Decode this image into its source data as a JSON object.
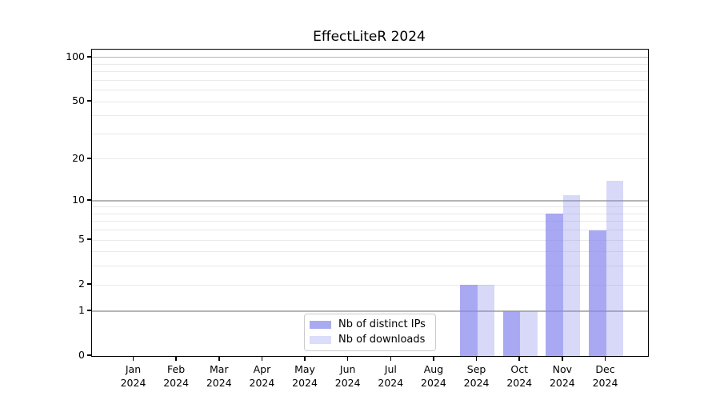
{
  "chart_data": {
    "type": "bar",
    "title": "EffectLiteR 2024",
    "year": "2024",
    "months": [
      "Jan",
      "Feb",
      "Mar",
      "Apr",
      "May",
      "Jun",
      "Jul",
      "Aug",
      "Sep",
      "Oct",
      "Nov",
      "Dec"
    ],
    "series": [
      {
        "name": "Nb of distinct IPs",
        "values": [
          0,
          0,
          0,
          0,
          0,
          0,
          0,
          0,
          2,
          1,
          8,
          6
        ],
        "fill": "rgba(136,136,238,0.72)",
        "swatch_hex": "#aaaaf0"
      },
      {
        "name": "Nb of downloads",
        "values": [
          0,
          0,
          0,
          0,
          0,
          0,
          0,
          0,
          2,
          1,
          11,
          14
        ],
        "fill": "rgba(136,136,238,0.33)",
        "swatch_hex": "#dcddfa"
      }
    ],
    "yscale": "log1p",
    "ylim": [
      0,
      113
    ],
    "ytick_labels": [
      0,
      1,
      2,
      5,
      10,
      20,
      50,
      100
    ],
    "major_gridlines": [
      1,
      10,
      100
    ],
    "minor_gridlines": [
      2,
      3,
      4,
      5,
      6,
      7,
      8,
      9,
      20,
      30,
      40,
      50,
      60,
      70,
      80,
      90
    ],
    "grid": "on",
    "legend_position": "lower center",
    "colors": {
      "bar_base": "#8888ee",
      "grid_major": "#b5b5b5",
      "grid_minor": "#e9e9e9",
      "axis": "#000000",
      "background": "#ffffff"
    }
  }
}
